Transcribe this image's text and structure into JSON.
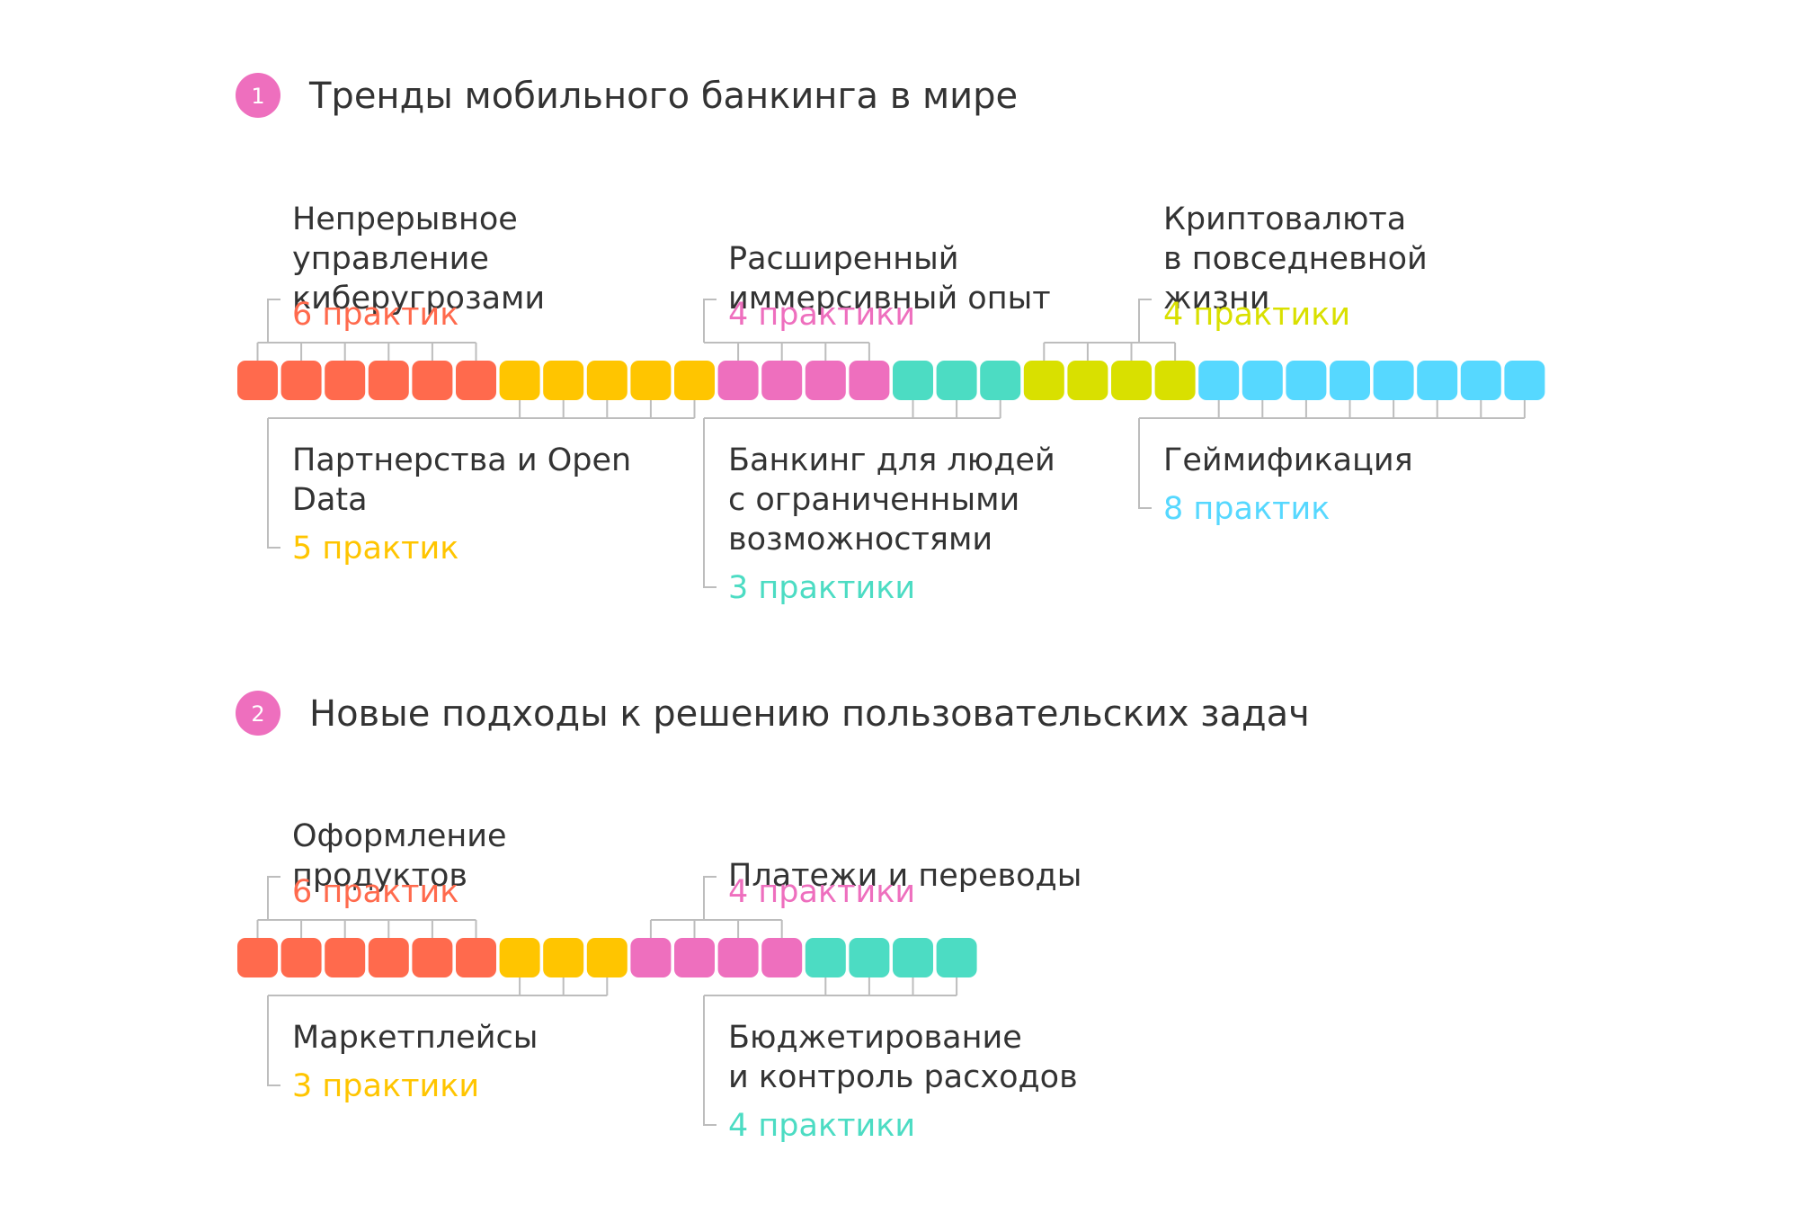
{
  "colors": {
    "text": "#333333",
    "connector": "#bdbdbd",
    "badge": "#ee6fbe",
    "red": "#ff6a4d",
    "yellow": "#ffc500",
    "pink": "#ee6fbe",
    "teal": "#4cdcc3",
    "lime": "#d9e000",
    "cyan": "#56d8ff"
  },
  "sections": [
    {
      "number": "1",
      "title": "Тренды мобильного банкинга в мире",
      "categories": [
        {
          "lines": [
            "Непрерывное",
            "управление",
            "киберугрозами"
          ],
          "count_label": "6 практик",
          "count": 6,
          "color": "#ff6a4d",
          "position": "top"
        },
        {
          "lines": [
            "Партнерства и Open",
            "Data"
          ],
          "count_label": "5 практик",
          "count": 5,
          "color": "#ffc500",
          "position": "bottom"
        },
        {
          "lines": [
            "Расширенный",
            "иммерсивный опыт"
          ],
          "count_label": "4 практики",
          "count": 4,
          "color": "#ee6fbe",
          "position": "top"
        },
        {
          "lines": [
            "Банкинг для людей",
            "с ограниченными",
            "возможностями"
          ],
          "count_label": "3 практики",
          "count": 3,
          "color": "#4cdcc3",
          "position": "bottom"
        },
        {
          "lines": [
            "Криптовалюта",
            "в повседневной",
            "жизни"
          ],
          "count_label": "4 практики",
          "count": 4,
          "color": "#d9e000",
          "position": "top"
        },
        {
          "lines": [
            "Геймификация"
          ],
          "count_label": "8 практик",
          "count": 8,
          "color": "#56d8ff",
          "position": "bottom"
        }
      ]
    },
    {
      "number": "2",
      "title": "Новые подходы к решению пользовательских задач",
      "categories": [
        {
          "lines": [
            "Оформление",
            "продуктов"
          ],
          "count_label": "6 практик",
          "count": 6,
          "color": "#ff6a4d",
          "position": "top"
        },
        {
          "lines": [
            "Маркетплейсы"
          ],
          "count_label": "3 практики",
          "count": 3,
          "color": "#ffc500",
          "position": "bottom"
        },
        {
          "lines": [
            "Платежи и переводы"
          ],
          "count_label": "4 практики",
          "count": 4,
          "color": "#ee6fbe",
          "position": "top"
        },
        {
          "lines": [
            "Бюджетирование",
            "и контроль расходов"
          ],
          "count_label": "4 практики",
          "count": 4,
          "color": "#4cdcc3",
          "position": "bottom"
        }
      ]
    }
  ]
}
